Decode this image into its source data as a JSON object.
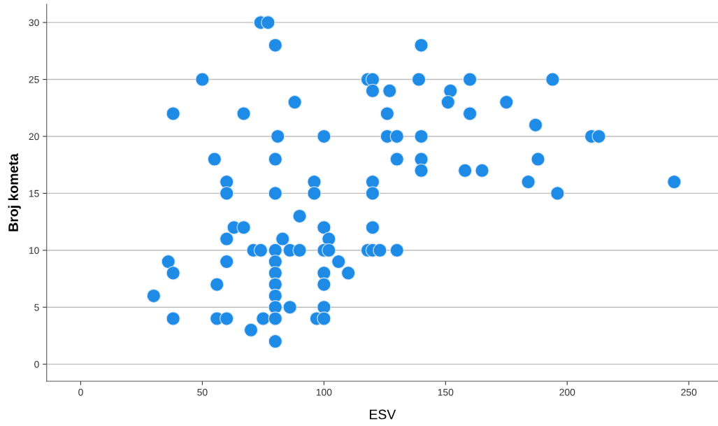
{
  "chart_data": {
    "type": "scatter",
    "xlabel": "ESV",
    "ylabel": "Broj kometa",
    "xlim": [
      -14,
      262
    ],
    "ylim": [
      -1.5,
      31.6
    ],
    "xticks": [
      0,
      50,
      100,
      150,
      200,
      250
    ],
    "yticks": [
      0,
      5,
      10,
      15,
      20,
      25,
      30
    ],
    "grid": "y",
    "marker": "circle",
    "series": [
      {
        "color": "#1e8ce6",
        "x": [
          74,
          77,
          80,
          50,
          38,
          67,
          88,
          81,
          100,
          55,
          80,
          60,
          60,
          80,
          96,
          96,
          90,
          63,
          67,
          100,
          60,
          83,
          102,
          71,
          74,
          80,
          86,
          90,
          100,
          102,
          36,
          60,
          80,
          106,
          38,
          80,
          100,
          110,
          56,
          80,
          100,
          30,
          80,
          80,
          86,
          100,
          38,
          56,
          60,
          75,
          80,
          97,
          100,
          70,
          80,
          118,
          120,
          120,
          127,
          126,
          126,
          130,
          130,
          139,
          140,
          140,
          140,
          140,
          120,
          120,
          120,
          118,
          120,
          123,
          130,
          152,
          151,
          160,
          160,
          158,
          165,
          175,
          187,
          194,
          188,
          184,
          196,
          210,
          213,
          244
        ],
        "values": [
          30,
          30,
          28,
          25,
          22,
          22,
          23,
          20,
          20,
          18,
          18,
          16,
          15,
          15,
          16,
          15,
          13,
          12,
          12,
          12,
          11,
          11,
          11,
          10,
          10,
          10,
          10,
          10,
          10,
          10,
          9,
          9,
          9,
          9,
          8,
          8,
          8,
          8,
          7,
          7,
          7,
          6,
          6,
          5,
          5,
          5,
          4,
          4,
          4,
          4,
          4,
          4,
          4,
          3,
          2,
          25,
          25,
          24,
          24,
          22,
          20,
          20,
          18,
          25,
          28,
          20,
          18,
          17,
          16,
          15,
          12,
          10,
          10,
          10,
          10,
          24,
          23,
          25,
          22,
          17,
          17,
          23,
          21,
          25,
          18,
          16,
          15,
          20,
          20,
          16
        ]
      }
    ]
  }
}
